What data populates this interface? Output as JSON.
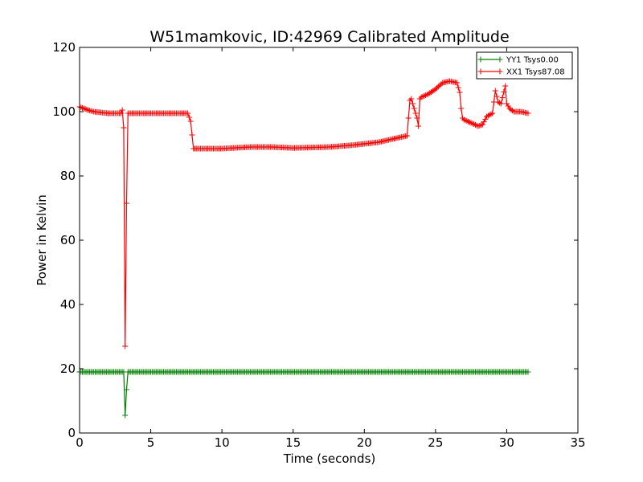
{
  "chart_data": {
    "type": "line",
    "title": "W51mamkovic, ID:42969 Calibrated Amplitude",
    "xlabel": "Time (seconds)",
    "ylabel": "Power in Kelvin",
    "xlim": [
      0,
      35
    ],
    "ylim": [
      0,
      120
    ],
    "xticks": [
      0,
      5,
      10,
      15,
      20,
      25,
      30,
      35
    ],
    "yticks": [
      0,
      20,
      40,
      60,
      80,
      100,
      120
    ],
    "grid": false,
    "legend_position": "top-right",
    "marker": "+",
    "series": [
      {
        "name": "YY1 Tsys0.00",
        "color": "#008000",
        "x": [
          0.0,
          3.0,
          3.1,
          3.2,
          3.3,
          3.4,
          3.5,
          31.5
        ],
        "y": [
          19.0,
          19.0,
          19.0,
          5.5,
          13.5,
          19.0,
          19.0,
          19.0
        ]
      },
      {
        "name": "XX1 Tsys87.08",
        "color": "#ff0000",
        "x": [
          0.0,
          0.3,
          0.6,
          1.0,
          2.0,
          2.9,
          3.0,
          3.1,
          3.2,
          3.3,
          3.4,
          3.6,
          5.0,
          7.5,
          7.6,
          7.8,
          8.0,
          10.0,
          12.0,
          13.5,
          15.0,
          17.5,
          19.0,
          20.0,
          21.0,
          22.0,
          23.0,
          23.1,
          23.2,
          23.3,
          23.7,
          23.8,
          23.9,
          24.0,
          24.5,
          25.0,
          25.5,
          26.0,
          26.5,
          26.7,
          26.8,
          26.9,
          27.0,
          27.5,
          28.0,
          28.3,
          28.6,
          29.0,
          29.2,
          29.4,
          29.6,
          29.9,
          30.0,
          30.2,
          30.5,
          31.0,
          31.5
        ],
        "y": [
          101.5,
          101.0,
          100.5,
          100.0,
          99.5,
          99.5,
          100.5,
          95.0,
          27.0,
          71.5,
          99.5,
          99.5,
          99.5,
          99.5,
          99.5,
          97.0,
          88.5,
          88.5,
          89.0,
          89.0,
          88.7,
          89.0,
          89.5,
          90.0,
          90.5,
          91.5,
          92.5,
          98.0,
          103.5,
          104.0,
          98.0,
          95.5,
          104.0,
          104.5,
          105.5,
          107.0,
          109.0,
          109.5,
          109.0,
          106.0,
          101.0,
          98.0,
          97.5,
          96.5,
          95.5,
          96.0,
          98.5,
          99.5,
          106.5,
          103.0,
          102.5,
          108.0,
          102.5,
          101.0,
          100.0,
          100.0,
          99.5
        ]
      }
    ]
  }
}
